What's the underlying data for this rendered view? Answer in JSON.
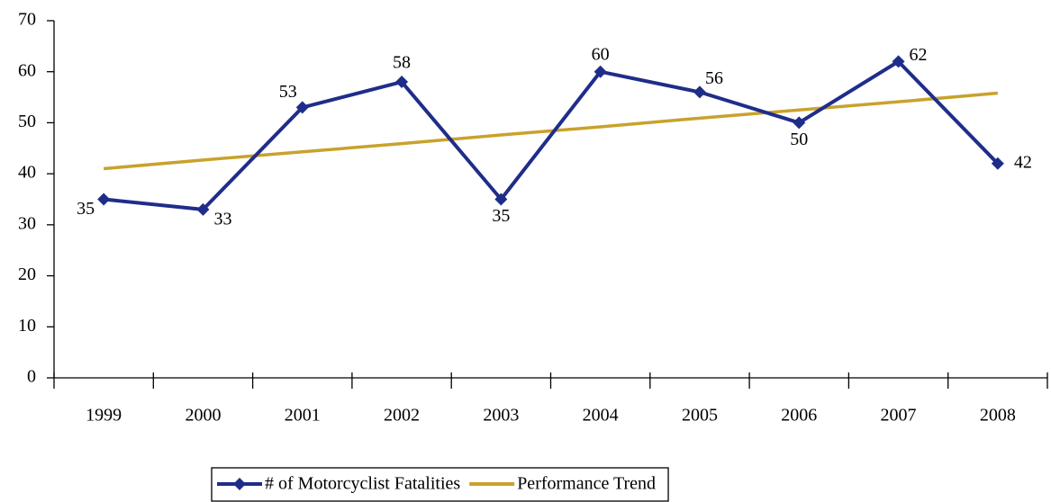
{
  "chart_data": {
    "type": "line",
    "categories": [
      "1999",
      "2000",
      "2001",
      "2002",
      "2003",
      "2004",
      "2005",
      "2006",
      "2007",
      "2008"
    ],
    "series": [
      {
        "name": "# of Motorcyclist Fatalities",
        "color": "#1f2d8a",
        "marker": "diamond",
        "values": [
          35,
          33,
          53,
          58,
          35,
          60,
          56,
          50,
          62,
          42
        ]
      },
      {
        "name": "Performance Trend",
        "color": "#c9a22c",
        "values": [
          41.0,
          42.7,
          44.3,
          45.9,
          47.6,
          49.2,
          50.9,
          52.5,
          54.1,
          55.8
        ]
      }
    ],
    "data_labels_series": 0,
    "ylim": [
      0,
      70
    ],
    "yticks": [
      0,
      10,
      20,
      30,
      40,
      50,
      60,
      70
    ],
    "grid": false,
    "legend": "bottom"
  }
}
